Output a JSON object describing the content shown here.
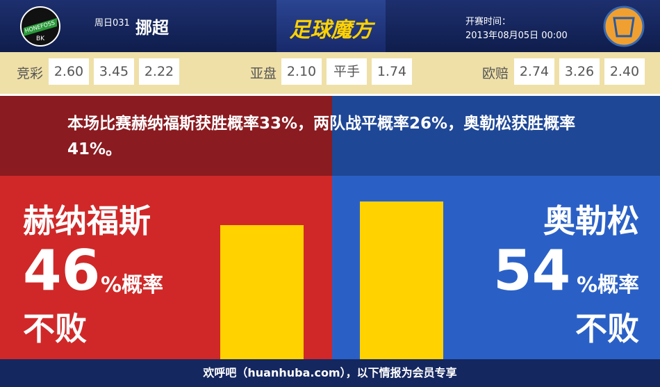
{
  "header": {
    "home_logo": {
      "name": "HONEFOSS",
      "suffix": "BK"
    },
    "match_no": "周日031",
    "league": "挪超",
    "brand": "足球魔方",
    "kickoff_label": "开赛时间：",
    "kickoff_time": "2013年08月05日 00:00"
  },
  "odds": [
    {
      "label": "竞彩",
      "values": [
        "2.60",
        "3.45",
        "2.22"
      ]
    },
    {
      "label": "亚盘",
      "values": [
        "2.10",
        "平手",
        "1.74"
      ]
    },
    {
      "label": "欧赔",
      "values": [
        "2.74",
        "3.26",
        "2.40"
      ]
    }
  ],
  "summary": "本场比赛赫纳福斯获胜概率33%，两队战平概率26%，奥勒松获胜概率41%。",
  "home": {
    "team": "赫纳福斯",
    "percent": 46,
    "suffix": "%概率",
    "label": "不败"
  },
  "away": {
    "team": "奥勒松",
    "percent": 54,
    "suffix": "%概率",
    "label": "不败"
  },
  "footer": "欢呼吧（huanhuba.com），以下情报为会员专享"
}
